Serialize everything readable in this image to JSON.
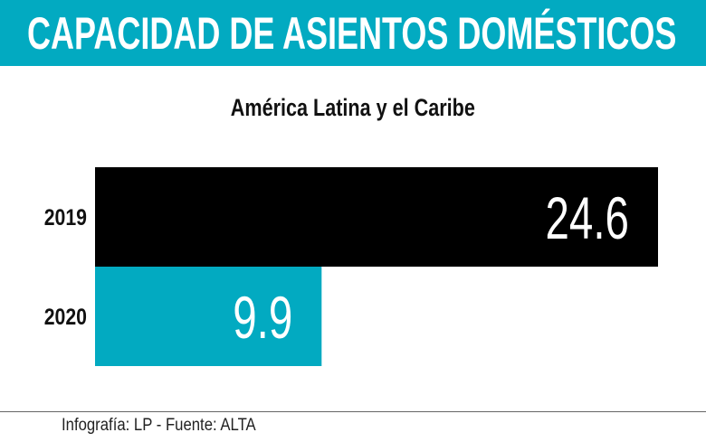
{
  "header": {
    "title": "CAPACIDAD DE ASIENTOS DOMÉSTICOS"
  },
  "colors": {
    "accent": "#02aac1",
    "bar_2019": "#000000",
    "bar_2020": "#02aac1"
  },
  "chart_data": {
    "type": "bar",
    "orientation": "horizontal",
    "title": "CAPACIDAD DE ASIENTOS DOMÉSTICOS",
    "subtitle": "América Latina y el Caribe",
    "categories": [
      "2019",
      "2020"
    ],
    "values": [
      24.6,
      9.9
    ],
    "labels": [
      "24.6",
      "9.9"
    ],
    "grid": false
  },
  "footer": {
    "source": "Infografía: LP - Fuente: ALTA"
  }
}
